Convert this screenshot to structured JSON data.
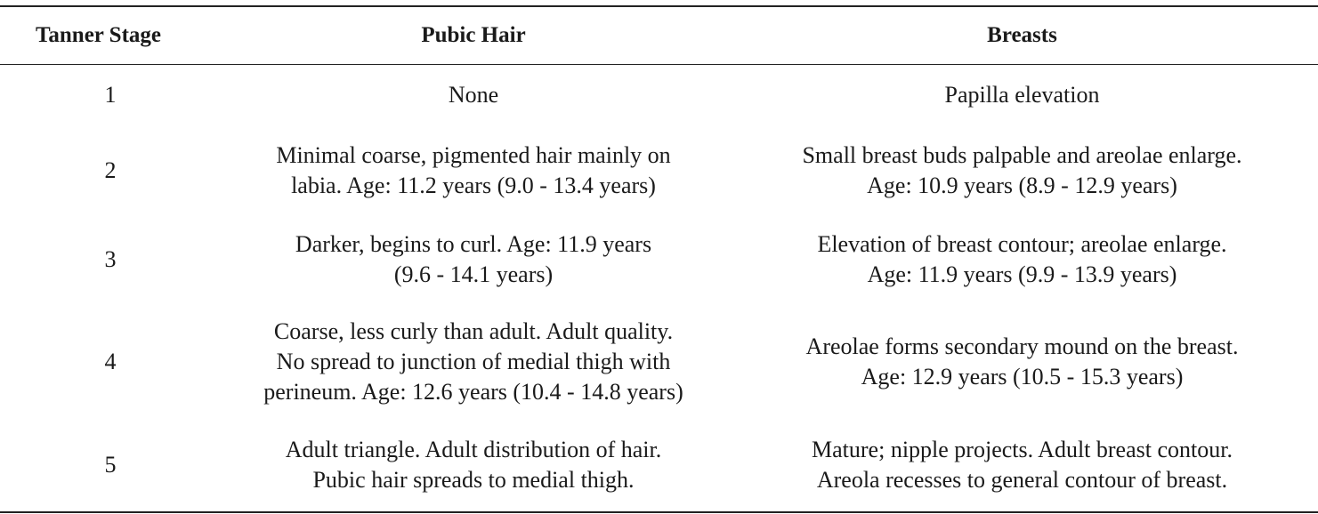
{
  "table": {
    "headers": [
      "Tanner Stage",
      "Pubic Hair",
      "Breasts"
    ],
    "rows": [
      {
        "stage": "1",
        "pubic_hair": [
          "None"
        ],
        "breasts": [
          "Papilla elevation"
        ]
      },
      {
        "stage": "2",
        "pubic_hair": [
          "Minimal coarse, pigmented hair mainly on",
          "labia. Age: 11.2 years (9.0 - 13.4 years)"
        ],
        "breasts": [
          "Small breast buds palpable and areolae enlarge.",
          "Age: 10.9 years (8.9 - 12.9 years)"
        ]
      },
      {
        "stage": "3",
        "pubic_hair": [
          "Darker, begins to curl. Age: 11.9 years",
          "(9.6 - 14.1 years)"
        ],
        "breasts": [
          "Elevation of breast contour; areolae enlarge.",
          "Age: 11.9 years (9.9 - 13.9 years)"
        ]
      },
      {
        "stage": "4",
        "pubic_hair": [
          "Coarse, less curly than adult. Adult quality.",
          "No spread to junction of medial thigh with",
          "perineum. Age: 12.6 years (10.4 - 14.8 years)"
        ],
        "breasts": [
          "Areolae forms secondary mound on the breast.",
          "Age: 12.9 years (10.5 - 15.3 years)"
        ]
      },
      {
        "stage": "5",
        "pubic_hair": [
          "Adult triangle. Adult distribution of hair.",
          "Pubic hair spreads to medial thigh."
        ],
        "breasts": [
          "Mature; nipple projects. Adult breast contour.",
          "Areola recesses to general contour of breast."
        ]
      }
    ]
  }
}
